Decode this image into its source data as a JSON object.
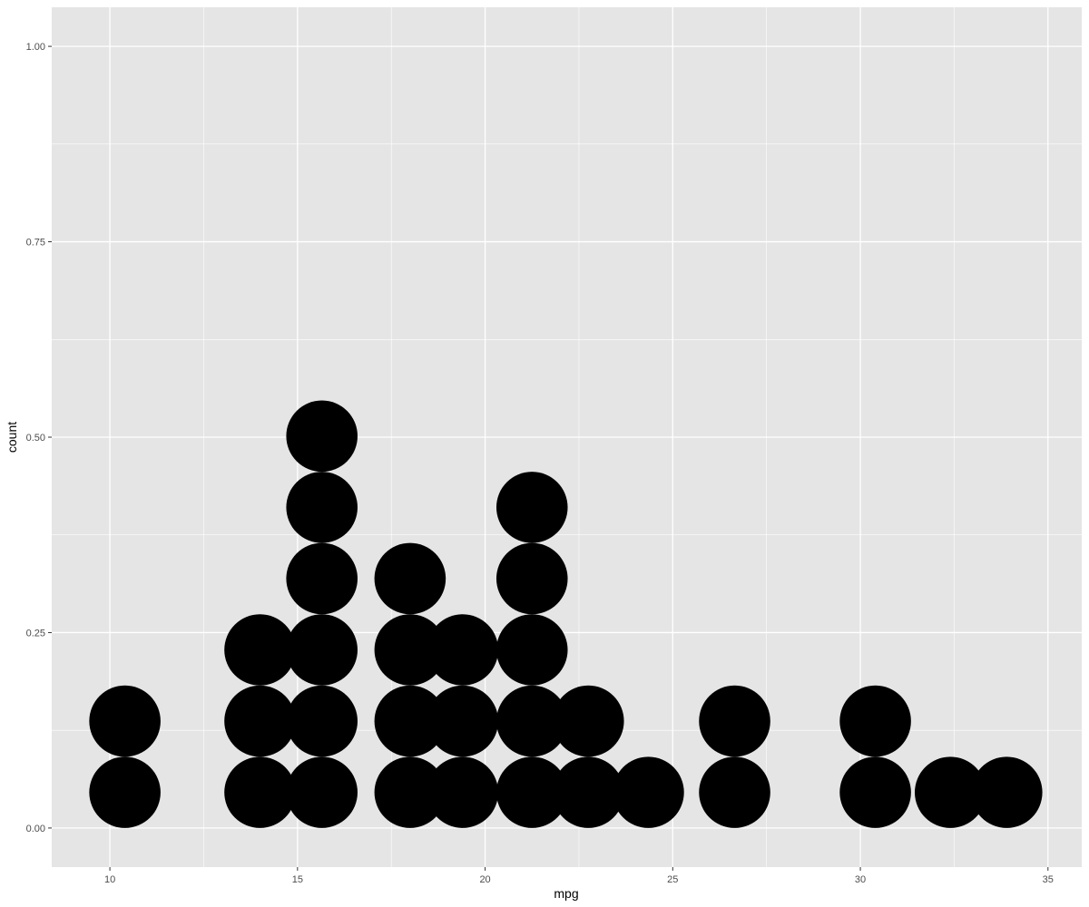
{
  "chart_data": {
    "type": "dotplot",
    "xlabel": "mpg",
    "ylabel": "count",
    "xlim": [
      8.45,
      35.9
    ],
    "ylim": [
      -0.05,
      1.05
    ],
    "x_ticks": [
      10,
      15,
      20,
      25,
      30,
      35
    ],
    "x_tick_labels": [
      "10",
      "15",
      "20",
      "25",
      "30",
      "35"
    ],
    "y_ticks": [
      0,
      0.25,
      0.5,
      0.75,
      1
    ],
    "y_tick_labels": [
      "0.00",
      "0.25",
      "0.50",
      "0.75",
      "1.00"
    ],
    "grid": true,
    "binwidth": 1.9,
    "stacks": [
      {
        "x": 10.4,
        "count": 2
      },
      {
        "x": 14.0,
        "count": 3
      },
      {
        "x": 15.65,
        "count": 6
      },
      {
        "x": 18.0,
        "count": 4
      },
      {
        "x": 19.4,
        "count": 3
      },
      {
        "x": 21.25,
        "count": 5
      },
      {
        "x": 22.75,
        "count": 2
      },
      {
        "x": 24.35,
        "count": 1
      },
      {
        "x": 26.65,
        "count": 2
      },
      {
        "x": 30.4,
        "count": 2
      },
      {
        "x": 32.4,
        "count": 1
      },
      {
        "x": 33.9,
        "count": 1
      }
    ],
    "colors": {
      "panel": "#e5e5e5",
      "grid": "#ffffff",
      "dot": "#000000"
    }
  }
}
